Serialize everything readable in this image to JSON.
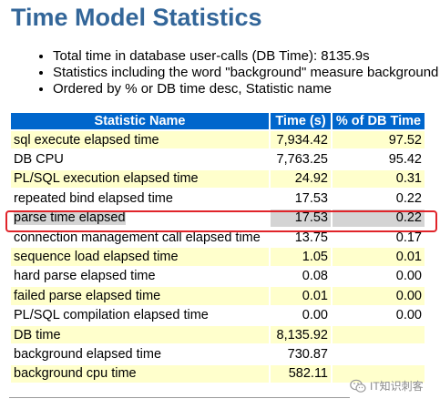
{
  "page": {
    "title": "Time Model Statistics",
    "bullets": [
      "Total time in database user-calls (DB Time): 8135.9s",
      "Statistics including the word \"background\" measure background",
      "Ordered by % or DB time desc, Statistic name"
    ]
  },
  "table": {
    "headers": [
      "Statistic Name",
      "Time (s)",
      "% of DB Time"
    ],
    "rows": [
      {
        "name": "sql execute elapsed time",
        "time": "7,934.42",
        "pct": "97.52"
      },
      {
        "name": "DB CPU",
        "time": "7,763.25",
        "pct": "95.42"
      },
      {
        "name": "PL/SQL execution elapsed time",
        "time": "24.92",
        "pct": "0.31"
      },
      {
        "name": "repeated bind elapsed time",
        "time": "17.53",
        "pct": "0.22"
      },
      {
        "name": "parse time elapsed",
        "time": "17.53",
        "pct": "0.22"
      },
      {
        "name": "connection management call elapsed time",
        "time": "13.75",
        "pct": "0.17"
      },
      {
        "name": "sequence load elapsed time",
        "time": "1.05",
        "pct": "0.01"
      },
      {
        "name": "hard parse elapsed time",
        "time": "0.08",
        "pct": "0.00"
      },
      {
        "name": "failed parse elapsed time",
        "time": "0.01",
        "pct": "0.00"
      },
      {
        "name": "PL/SQL compilation elapsed time",
        "time": "0.00",
        "pct": "0.00"
      },
      {
        "name": "DB time",
        "time": "8,135.92",
        "pct": ""
      },
      {
        "name": "background elapsed time",
        "time": "730.87",
        "pct": ""
      },
      {
        "name": "background cpu time",
        "time": "582.11",
        "pct": ""
      }
    ],
    "selected_row": 4
  },
  "colors": {
    "title": "#336699",
    "header_bg": "#0066CC",
    "row_odd": "#FFFFCC",
    "row_even": "#FFFFFF",
    "selection": "#D4D4D4",
    "highlight_border": "#e0242a"
  },
  "watermark": {
    "icon": "wechat-icon",
    "text": "IT知识刺客"
  }
}
